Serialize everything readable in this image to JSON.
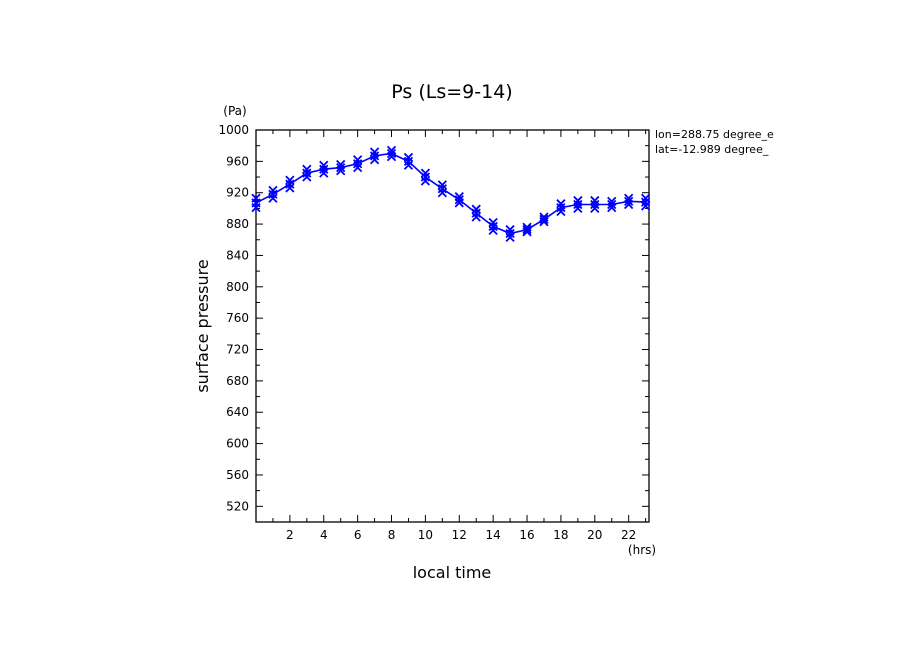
{
  "chart_data": {
    "type": "line",
    "title": "Ps (Ls=9-14)",
    "xlabel": "local time",
    "ylabel": "surface pressure",
    "xunit": "(hrs)",
    "yunit": "(Pa)",
    "annotations": [
      "lon=288.75 degree_e",
      "lat=-12.989 degree_"
    ],
    "xlim": [
      0,
      23.2
    ],
    "ylim": [
      500,
      1000
    ],
    "xticks": [
      2,
      4,
      6,
      8,
      10,
      12,
      14,
      16,
      18,
      20,
      22
    ],
    "yticks": [
      520,
      560,
      600,
      640,
      680,
      720,
      760,
      800,
      840,
      880,
      920,
      960,
      1000
    ],
    "grid": false,
    "line_color": "#0000ff",
    "series": [
      {
        "x": [
          0.0,
          1.0,
          2.0,
          3.0,
          4.0,
          5.0,
          6.0,
          7.0,
          8.0,
          9.0,
          10.0,
          11.0,
          12.0,
          13.0,
          14.0,
          15.0,
          16.0,
          17.0,
          18.0,
          19.0,
          20.0,
          21.0,
          22.0,
          23.0
        ],
        "values": [
          907,
          918,
          931,
          945,
          950,
          952,
          957,
          967,
          970,
          960,
          940,
          925,
          911,
          894,
          877,
          868,
          873,
          886,
          901,
          905,
          905,
          905,
          909,
          908
        ],
        "spread": [
          6,
          5,
          5,
          5,
          5,
          4,
          5,
          5,
          4,
          5,
          5,
          5,
          4,
          5,
          5,
          5,
          3,
          3,
          5,
          5,
          5,
          4,
          4,
          5
        ]
      }
    ]
  }
}
